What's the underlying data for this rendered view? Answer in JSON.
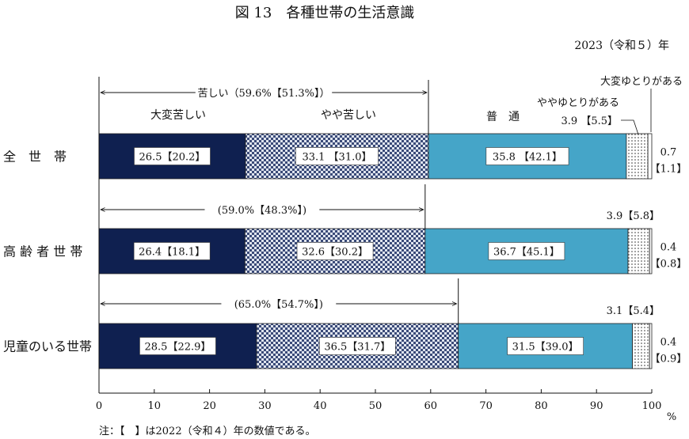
{
  "chart_data": {
    "type": "bar",
    "stacked": true,
    "orientation": "horizontal",
    "title": "図 13　各種世帯の生活意識",
    "year_label": "2023（令和５）年",
    "xlim": [
      0,
      100
    ],
    "x_ticks": [
      0,
      10,
      20,
      30,
      40,
      50,
      60,
      70,
      80,
      90,
      100
    ],
    "x_unit": "%",
    "note": "注：【　】は2022（令和４）年の数値である。",
    "categories": [
      "全　世　帯",
      "高 齢 者 世 帯",
      "児童のいる世帯"
    ],
    "series": [
      {
        "name": "大変苦しい",
        "color": "#0f2050",
        "values": [
          26.5,
          26.4,
          28.5
        ],
        "labels": [
          "26.5【20.2】",
          "26.4【18.1】",
          "28.5【22.9】"
        ]
      },
      {
        "name": "やや苦しい",
        "color": "#8896b5",
        "pattern": "checker",
        "values": [
          33.1,
          32.6,
          36.5
        ],
        "labels": [
          "33.1 【31.0】",
          "32.6【30.2】",
          "36.5【31.7】"
        ]
      },
      {
        "name": "普　通",
        "color": "#45a5c8",
        "values": [
          35.8,
          36.7,
          31.5
        ],
        "labels": [
          "35.8 【42.1】",
          "36.7【45.1】",
          "31.5【39.0】"
        ]
      },
      {
        "name": "ややゆとりがある",
        "color": "#ffffff",
        "pattern": "dots",
        "values": [
          3.9,
          3.9,
          3.1
        ],
        "labels": [
          "3.9 【5.5】",
          "3.9【5.8】",
          "3.1【5.4】"
        ]
      },
      {
        "name": "大変ゆとりがある",
        "color": "#ffffff",
        "values": [
          0.7,
          0.4,
          0.4
        ],
        "labels": [
          "0.7",
          "0.4",
          "0.4"
        ],
        "labels_prev": [
          "【1.1】",
          "【0.8】",
          "【0.9】"
        ]
      }
    ],
    "hardship_totals": [
      {
        "label": "苦しい（59.6%【51.3%】）",
        "value": 59.6
      },
      {
        "label": "(59.0%【48.3%】)",
        "value": 59.0
      },
      {
        "label": "(65.0%【54.7%】)",
        "value": 65.0
      }
    ],
    "grid": false,
    "legend": "labels on chart, top"
  }
}
